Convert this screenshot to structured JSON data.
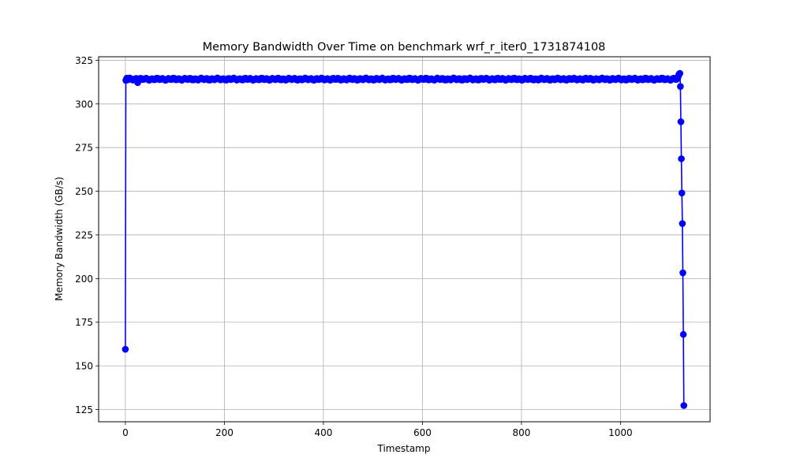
{
  "chart_data": {
    "type": "line",
    "title": "Memory Bandwidth Over Time on benchmark wrf_r_iter0_1731874108",
    "xlabel": "Timestamp",
    "ylabel": "Memory Bandwidth (GB/s)",
    "xlim": [
      -54,
      1181
    ],
    "ylim": [
      118,
      327
    ],
    "xticks": [
      0,
      200,
      400,
      600,
      800,
      1000
    ],
    "yticks": [
      125,
      150,
      175,
      200,
      225,
      250,
      275,
      300,
      325
    ],
    "grid": true,
    "line_color": "#0000ff",
    "marker": "circle",
    "plateau": {
      "x_start": 6,
      "x_end": 1114,
      "step": 3,
      "value": 314.2,
      "jitter": 0.5
    },
    "series": [
      {
        "points": [
          [
            0,
            159.5
          ],
          [
            1,
            313.5
          ],
          [
            2,
            314.2
          ],
          [
            3,
            314.8
          ],
          [
            4,
            314.0
          ],
          [
            5,
            313.8
          ],
          [
            22,
            314.6
          ],
          [
            25,
            312.2
          ],
          [
            28,
            313.6
          ],
          [
            1115,
            314.6
          ],
          [
            1116,
            315.2
          ],
          [
            1117,
            316.0
          ],
          [
            1118,
            316.8
          ],
          [
            1119,
            317.3
          ],
          [
            1120,
            317.5
          ],
          [
            1121,
            310.0
          ],
          [
            1122,
            289.8
          ],
          [
            1123,
            268.6
          ],
          [
            1124,
            249.0
          ],
          [
            1125,
            231.5
          ],
          [
            1126,
            203.3
          ],
          [
            1127,
            168.0
          ],
          [
            1128,
            127.3
          ]
        ]
      }
    ]
  }
}
